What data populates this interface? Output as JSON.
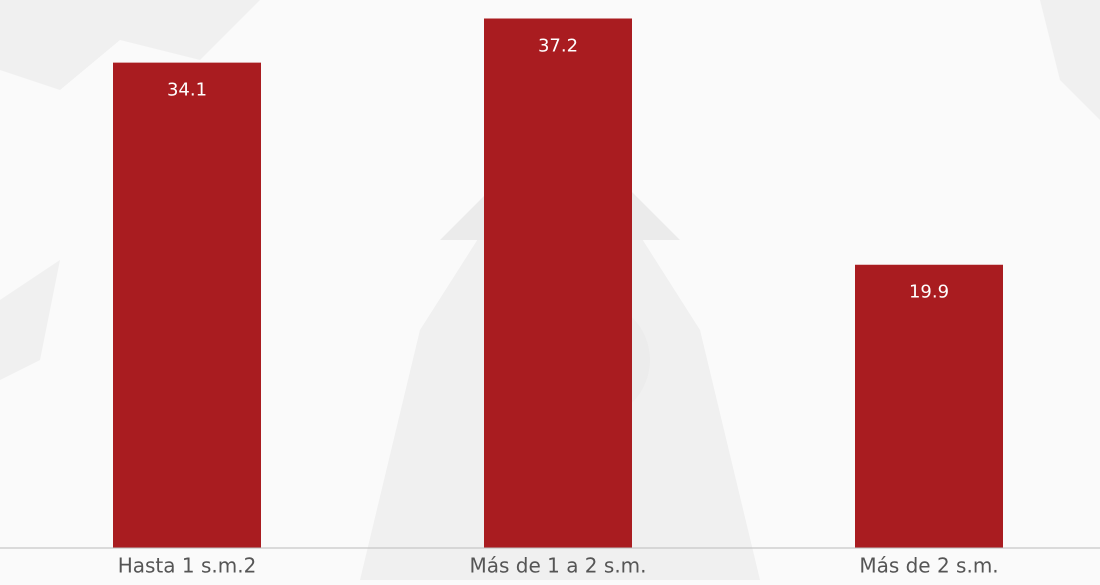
{
  "chart_data": {
    "type": "bar",
    "categories": [
      "Hasta 1 s.m.2",
      "Más de 1 a 2 s.m.",
      "Más de 2 s.m."
    ],
    "values": [
      34.1,
      37.2,
      19.9
    ],
    "color": "#a91c20",
    "ylim": [
      0,
      38.5
    ]
  }
}
